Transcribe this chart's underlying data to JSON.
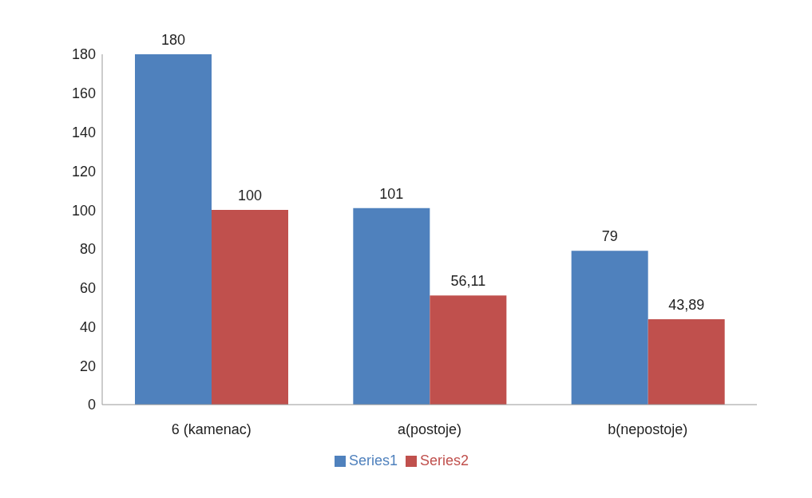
{
  "chart_data": {
    "type": "bar",
    "categories": [
      "6 (kamenac)",
      "a(postoje)",
      "b(nepostoje)"
    ],
    "series": [
      {
        "name": "Series1",
        "color": "#4f81bd",
        "values": [
          180,
          101,
          79
        ],
        "value_labels": [
          "180",
          "101",
          "79"
        ]
      },
      {
        "name": "Series2",
        "color": "#c0504d",
        "values": [
          100,
          56.11,
          43.89
        ],
        "value_labels": [
          "100",
          "56,11",
          "43,89"
        ]
      }
    ],
    "ylim": [
      0,
      180
    ],
    "yticks": [
      0,
      20,
      40,
      60,
      80,
      100,
      120,
      140,
      160,
      180
    ],
    "grid": false,
    "legend": "bottom"
  }
}
